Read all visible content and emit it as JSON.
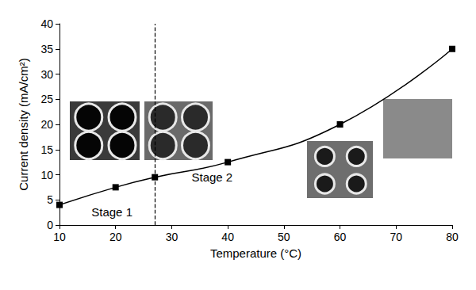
{
  "chart_data": {
    "type": "line",
    "x_label": "Temperature (°C)",
    "y_label": "Current density (mA/cm²)",
    "x": [
      10,
      20,
      27,
      40,
      60,
      80
    ],
    "values": [
      4,
      7.5,
      9.5,
      12.5,
      20,
      35
    ],
    "color": "#000000",
    "marker": "square",
    "line_style": "solid",
    "xlim": [
      10,
      80
    ],
    "xticks": [
      10,
      20,
      30,
      40,
      50,
      60,
      70,
      80
    ],
    "ylim": [
      0,
      40
    ],
    "yticks": [
      0,
      5,
      10,
      15,
      20,
      25,
      30,
      35,
      40
    ],
    "grid": false,
    "reference_x": 27,
    "annotations": [
      "Stage 1",
      "Stage 2"
    ]
  }
}
